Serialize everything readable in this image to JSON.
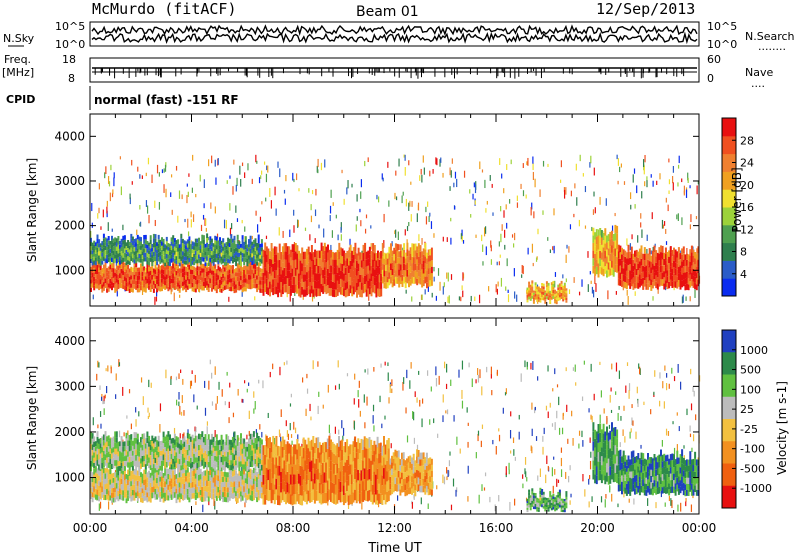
{
  "header": {
    "station": "McMurdo (fitACF)",
    "beam": "Beam 01",
    "date": "12/Sep/2013",
    "nsky_label": "N.Sky",
    "nsearch_label": "N.Search",
    "freq_label": "Freq.",
    "freq_unit": "[MHz]",
    "nave_label": "Nave",
    "cpid_label": "CPID",
    "cpid_value": "normal (fast) -151 RF",
    "noise_ticks": [
      "10^5",
      "10^0"
    ],
    "noise_ticks_right": [
      "10^5",
      "10^0"
    ],
    "freq_ticks": [
      "18",
      "8"
    ],
    "nave_ticks": [
      "60",
      "0"
    ],
    "dots_nsearch": "........",
    "dots_nave": "...."
  },
  "chart_data": [
    {
      "type": "heatmap",
      "name": "power-panel",
      "xlabel": "",
      "ylabel": "Slant Range [km]",
      "xlim": [
        0,
        24
      ],
      "ylim": [
        200,
        4500
      ],
      "yticks": [
        "1000",
        "2000",
        "3000",
        "4000"
      ],
      "colorbar_label": "Power [dB]",
      "colorbar_ticks": [
        "4",
        "8",
        "12",
        "16",
        "20",
        "24",
        "28"
      ],
      "colorbar_colors": [
        "#0a2cf0",
        "#2a5cc8",
        "#2f7f4e",
        "#4fa050",
        "#9cd23a",
        "#f0e030",
        "#f0a020",
        "#f08030",
        "#f05020",
        "#e81010"
      ],
      "bands": [
        {
          "t0": 0.0,
          "t1": 6.8,
          "r0": 550,
          "r1": 1150,
          "level": 0.9
        },
        {
          "t0": 0.0,
          "t1": 6.8,
          "r0": 1150,
          "r1": 1700,
          "level": 0.35
        },
        {
          "t0": 6.8,
          "t1": 11.5,
          "r0": 450,
          "r1": 1500,
          "level": 0.95
        },
        {
          "t0": 11.5,
          "t1": 13.5,
          "r0": 650,
          "r1": 1500,
          "level": 0.8
        },
        {
          "t0": 17.2,
          "t1": 18.8,
          "r0": 300,
          "r1": 650,
          "level": 0.75
        },
        {
          "t0": 19.8,
          "t1": 20.8,
          "r0": 900,
          "r1": 1900,
          "level": 0.7
        },
        {
          "t0": 20.8,
          "t1": 24.0,
          "r0": 600,
          "r1": 1450,
          "level": 0.95
        }
      ]
    },
    {
      "type": "heatmap",
      "name": "velocity-panel",
      "xlabel": "Time UT",
      "ylabel": "Slant Range [km]",
      "xlim": [
        0,
        24
      ],
      "ylim": [
        200,
        4500
      ],
      "yticks": [
        "1000",
        "2000",
        "3000",
        "4000"
      ],
      "xticks": [
        "00:00",
        "04:00",
        "08:00",
        "12:00",
        "16:00",
        "20:00",
        "00:00"
      ],
      "colorbar_label": "Velocity [m s-1]",
      "colorbar_ticks": [
        "1000",
        "500",
        "100",
        "25",
        "-25",
        "-100",
        "-500",
        "-1000"
      ],
      "colorbar_colors": [
        "#2040c0",
        "#2d8a4a",
        "#60c040",
        "#bcbcbc",
        "#f2c040",
        "#f29020",
        "#f06010",
        "#e81010"
      ],
      "bands": [
        {
          "t0": 0.0,
          "t1": 6.8,
          "r0": 500,
          "r1": 1200,
          "level": 0.55
        },
        {
          "t0": 0.0,
          "t1": 6.8,
          "r0": 1200,
          "r1": 1900,
          "level": 0.45
        },
        {
          "t0": 6.8,
          "t1": 11.8,
          "r0": 450,
          "r1": 1800,
          "level": 0.78
        },
        {
          "t0": 11.8,
          "t1": 13.5,
          "r0": 650,
          "r1": 1500,
          "level": 0.7
        },
        {
          "t0": 17.2,
          "t1": 18.8,
          "r0": 300,
          "r1": 650,
          "level": 0.35
        },
        {
          "t0": 19.8,
          "t1": 20.8,
          "r0": 900,
          "r1": 2100,
          "level": 0.3
        },
        {
          "t0": 20.8,
          "t1": 24.0,
          "r0": 650,
          "r1": 1500,
          "level": 0.28
        }
      ]
    }
  ],
  "colorbar_superscript": "-1"
}
